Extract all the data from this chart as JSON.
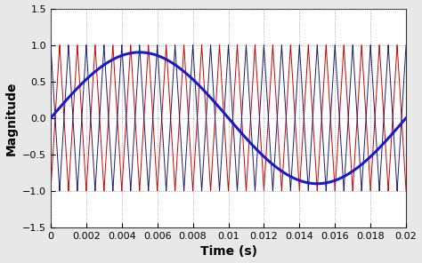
{
  "title": "",
  "xlabel": "Time (s)",
  "ylabel": "Magnitude",
  "xlim": [
    0,
    0.02
  ],
  "ylim": [
    -1.5,
    1.5
  ],
  "yticks": [
    -1.5,
    -1.0,
    -0.5,
    0,
    0.5,
    1.0,
    1.5
  ],
  "xticks": [
    0,
    0.002,
    0.004,
    0.006,
    0.008,
    0.01,
    0.012,
    0.014,
    0.016,
    0.018,
    0.02
  ],
  "carrier_freq": 1000,
  "reference_freq": 50,
  "carrier_amplitude": 1.0,
  "reference_amplitude": 0.9,
  "carrier1_color": "#CC0000",
  "carrier2_color": "#1a1a6e",
  "reference_color": "#1a1aCC",
  "background_color": "#ffffff",
  "outer_background": "#e8e8e8",
  "grid_color": "#888888",
  "linewidth_carrier": 0.7,
  "linewidth_reference": 2.2,
  "phase_shift": 0.5,
  "num_points": 60000
}
